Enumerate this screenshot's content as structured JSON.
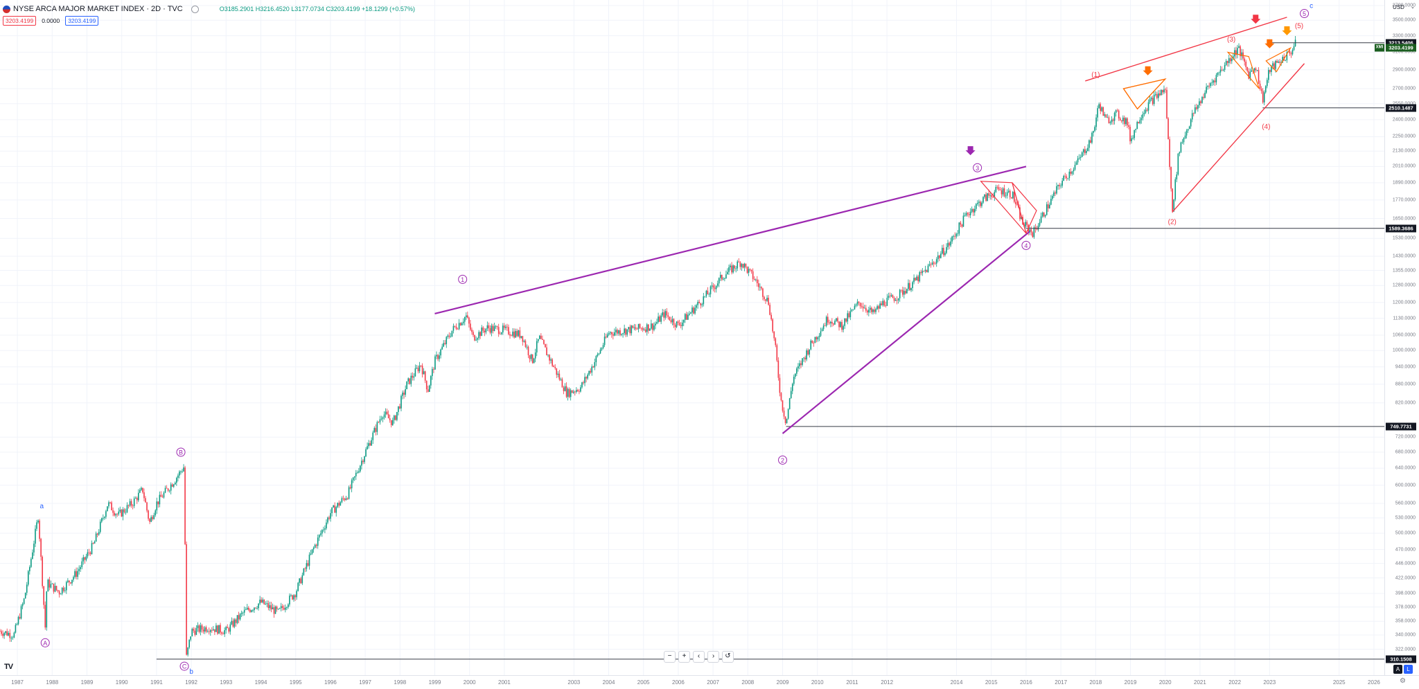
{
  "header": {
    "title": "NYSE ARCA MAJOR MARKET INDEX · 2D · TVC",
    "ohlc": "O3185.2901 H3216.4520 L3177.0734 C3203.4199 +18.1299 (+0.57%)",
    "bid": "3203.4199",
    "spread": "0.0000",
    "ask": "3203.4199"
  },
  "currency": "USD",
  "currency_caret": "⌄",
  "toolbar": {
    "zoom_out": "−",
    "zoom_in": "+",
    "scroll_left": "‹",
    "scroll_right": "›",
    "reset": "↺"
  },
  "logo": "TV",
  "mini_buttons": {
    "auto": "A",
    "log": "L"
  },
  "settings_icon": "⚙",
  "colors": {
    "up": "#089981",
    "down": "#f23645",
    "purple": "#9c27b0",
    "wave_red": "#f23645",
    "wave_blue": "#2962ff",
    "orange": "#ff6d00",
    "amber": "#ff9800"
  },
  "chart_data": {
    "type": "candlestick",
    "symbol": "NYSE ARCA MAJOR MARKET INDEX",
    "interval": "2D",
    "scale": "log",
    "x_range": [
      1986.5,
      2026.3
    ],
    "y_range": [
      295,
      3720
    ],
    "last_price": 3203.4199,
    "x_ticks": [
      "1987",
      "1988",
      "1989",
      "1990",
      "1991",
      "1992",
      "1993",
      "1994",
      "1995",
      "1996",
      "1997",
      "1998",
      "1999",
      "2000",
      "2001",
      "2003",
      "2004",
      "2005",
      "2006",
      "2007",
      "2008",
      "2009",
      "2010",
      "2011",
      "2012",
      "2014",
      "2015",
      "2016",
      "2017",
      "2018",
      "2019",
      "2020",
      "2021",
      "2022",
      "2023",
      "2025",
      "2026"
    ],
    "y_ticks": [
      "3700.0000",
      "3500.0000",
      "3300.0000",
      "3100.0000",
      "2900.0000",
      "2700.0000",
      "2550.0000",
      "2400.0000",
      "2250.0000",
      "2130.0000",
      "2010.0000",
      "1890.0000",
      "1770.0000",
      "1650.0000",
      "1530.0000",
      "1430.0000",
      "1355.0000",
      "1280.0000",
      "1200.0000",
      "1130.0000",
      "1060.0000",
      "1000.0000",
      "940.0000",
      "880.0000",
      "820.0000",
      "720.0000",
      "680.0000",
      "640.0000",
      "600.0000",
      "560.0000",
      "530.0000",
      "500.0000",
      "470.0000",
      "446.0000",
      "422.0000",
      "398.0000",
      "378.0000",
      "358.0000",
      "340.0000",
      "322.0000"
    ],
    "y_tick_values": [
      3700,
      3500,
      3300,
      3100,
      2900,
      2700,
      2550,
      2400,
      2250,
      2130,
      2010,
      1890,
      1770,
      1650,
      1530,
      1430,
      1355,
      1280,
      1200,
      1130,
      1060,
      1000,
      940,
      880,
      820,
      720,
      680,
      640,
      600,
      560,
      530,
      500,
      470,
      446,
      422,
      398,
      378,
      358,
      340,
      322
    ],
    "price_path": [
      [
        1986.5,
        345
      ],
      [
        1986.9,
        340
      ],
      [
        1987.2,
        390
      ],
      [
        1987.6,
        535
      ],
      [
        1987.8,
        350
      ],
      [
        1987.85,
        415
      ],
      [
        1988.2,
        400
      ],
      [
        1988.7,
        430
      ],
      [
        1989.2,
        480
      ],
      [
        1989.6,
        560
      ],
      [
        1989.9,
        535
      ],
      [
        1990.3,
        560
      ],
      [
        1990.6,
        590
      ],
      [
        1990.8,
        520
      ],
      [
        1991.0,
        560
      ],
      [
        1991.5,
        610
      ],
      [
        1991.8,
        645
      ],
      [
        1991.85,
        310
      ],
      [
        1992.0,
        345
      ],
      [
        1992.5,
        350
      ],
      [
        1993.0,
        345
      ],
      [
        1993.5,
        370
      ],
      [
        1994.0,
        385
      ],
      [
        1994.5,
        370
      ],
      [
        1995.0,
        400
      ],
      [
        1995.5,
        470
      ],
      [
        1996.0,
        540
      ],
      [
        1996.5,
        580
      ],
      [
        1997.0,
        680
      ],
      [
        1997.5,
        790
      ],
      [
        1997.8,
        760
      ],
      [
        1998.2,
        880
      ],
      [
        1998.6,
        950
      ],
      [
        1998.8,
        860
      ],
      [
        1999.0,
        960
      ],
      [
        1999.5,
        1080
      ],
      [
        1999.9,
        1140
      ],
      [
        2000.1,
        1050
      ],
      [
        2000.5,
        1090
      ],
      [
        2001.0,
        1080
      ],
      [
        2001.5,
        1060
      ],
      [
        2001.8,
        960
      ],
      [
        2002.0,
        1050
      ],
      [
        2002.5,
        920
      ],
      [
        2002.8,
        850
      ],
      [
        2003.2,
        870
      ],
      [
        2003.6,
        960
      ],
      [
        2004.0,
        1070
      ],
      [
        2004.5,
        1080
      ],
      [
        2005.0,
        1090
      ],
      [
        2005.3,
        1100
      ],
      [
        2005.6,
        1150
      ],
      [
        2006.0,
        1100
      ],
      [
        2006.5,
        1180
      ],
      [
        2006.9,
        1250
      ],
      [
        2007.3,
        1330
      ],
      [
        2007.8,
        1400
      ],
      [
        2008.2,
        1310
      ],
      [
        2008.6,
        1200
      ],
      [
        2008.8,
        1000
      ],
      [
        2008.95,
        830
      ],
      [
        2009.1,
        760
      ],
      [
        2009.3,
        900
      ],
      [
        2009.8,
        1020
      ],
      [
        2010.3,
        1130
      ],
      [
        2010.7,
        1100
      ],
      [
        2011.2,
        1200
      ],
      [
        2011.6,
        1150
      ],
      [
        2011.9,
        1200
      ],
      [
        2012.3,
        1230
      ],
      [
        2012.8,
        1300
      ],
      [
        2013.3,
        1390
      ],
      [
        2013.8,
        1500
      ],
      [
        2014.3,
        1680
      ],
      [
        2014.8,
        1780
      ],
      [
        2015.2,
        1840
      ],
      [
        2015.6,
        1810
      ],
      [
        2015.9,
        1620
      ],
      [
        2016.2,
        1560
      ],
      [
        2016.6,
        1720
      ],
      [
        2017.0,
        1890
      ],
      [
        2017.5,
        2050
      ],
      [
        2017.9,
        2250
      ],
      [
        2018.1,
        2550
      ],
      [
        2018.3,
        2390
      ],
      [
        2018.6,
        2450
      ],
      [
        2018.9,
        2380
      ],
      [
        2019.0,
        2220
      ],
      [
        2019.3,
        2450
      ],
      [
        2019.6,
        2580
      ],
      [
        2020.0,
        2700
      ],
      [
        2020.2,
        1700
      ],
      [
        2020.4,
        2150
      ],
      [
        2020.8,
        2450
      ],
      [
        2021.2,
        2700
      ],
      [
        2021.6,
        2900
      ],
      [
        2021.9,
        3050
      ],
      [
        2022.1,
        3150
      ],
      [
        2022.4,
        2850
      ],
      [
        2022.6,
        2950
      ],
      [
        2022.8,
        2590
      ],
      [
        2023.0,
        2900
      ],
      [
        2023.3,
        3000
      ],
      [
        2023.6,
        3100
      ],
      [
        2023.75,
        3203
      ]
    ],
    "horizontal_levels": [
      {
        "label": "3213.5406",
        "value": 3213.5406,
        "from": 2023.0
      },
      {
        "label": "2510.1487",
        "value": 2510.1487,
        "from": 2022.8
      },
      {
        "label": "1589.3686",
        "value": 1589.3686,
        "from": 2016.0
      },
      {
        "label": "749.7731",
        "value": 749.7731,
        "from": 2009.1
      },
      {
        "label": "310.1508",
        "value": 310.1508,
        "from": 1991.0
      }
    ],
    "last_price_label": "3203.4199",
    "symbol_tag": "XMI",
    "trend_lines": [
      {
        "color": "#9c27b0",
        "width": 2.2,
        "points": [
          [
            1999.0,
            1150
          ],
          [
            2016.0,
            2010
          ]
        ]
      },
      {
        "color": "#9c27b0",
        "width": 2.2,
        "points": [
          [
            2009.0,
            730
          ],
          [
            2016.1,
            1570
          ]
        ]
      },
      {
        "color": "#f23645",
        "width": 1.4,
        "points": [
          [
            2017.7,
            2780
          ],
          [
            2023.5,
            3540
          ]
        ]
      },
      {
        "color": "#f23645",
        "width": 1.4,
        "points": [
          [
            2020.2,
            1690
          ],
          [
            2024.0,
            2970
          ]
        ]
      }
    ],
    "triangles": [
      {
        "color": "#f23645",
        "points": [
          [
            2014.7,
            1900
          ],
          [
            2016.0,
            1560
          ],
          [
            2015.6,
            1890
          ]
        ]
      },
      {
        "color": "#f23645",
        "points": [
          [
            2016.0,
            1560
          ],
          [
            2015.6,
            1890
          ],
          [
            2016.3,
            1700
          ]
        ]
      },
      {
        "color": "#ff6d00",
        "points": [
          [
            2018.8,
            2700
          ],
          [
            2019.2,
            2500
          ],
          [
            2020.0,
            2800
          ]
        ]
      },
      {
        "color": "#ff6d00",
        "points": [
          [
            2019.2,
            2500
          ],
          [
            2020.0,
            2800
          ],
          [
            2018.8,
            2700
          ]
        ]
      },
      {
        "color": "#ff6d00",
        "points": [
          [
            2021.8,
            3100
          ],
          [
            2022.7,
            2700
          ],
          [
            2022.4,
            3050
          ]
        ]
      },
      {
        "color": "#ff6d00",
        "points": [
          [
            2022.9,
            3000
          ],
          [
            2023.2,
            2880
          ],
          [
            2023.6,
            3150
          ]
        ]
      }
    ],
    "wave_labels": [
      {
        "text": "a",
        "x": 1987.7,
        "y": 555,
        "color": "#2962ff",
        "circled": false
      },
      {
        "text": "A",
        "x": 1987.8,
        "y": 330,
        "color": "#9c27b0",
        "circled": true
      },
      {
        "text": "B",
        "x": 1991.7,
        "y": 680,
        "color": "#9c27b0",
        "circled": true
      },
      {
        "text": "C",
        "x": 1991.8,
        "y": 302,
        "color": "#9c27b0",
        "circled": true
      },
      {
        "text": "b",
        "x": 1992.0,
        "y": 296,
        "color": "#2962ff",
        "circled": false
      },
      {
        "text": "1",
        "x": 1999.8,
        "y": 1310,
        "color": "#9c27b0",
        "circled": true
      },
      {
        "text": "2",
        "x": 2009.0,
        "y": 660,
        "color": "#9c27b0",
        "circled": true
      },
      {
        "text": "3",
        "x": 2014.6,
        "y": 2000,
        "color": "#9c27b0",
        "circled": true
      },
      {
        "text": "4",
        "x": 2016.0,
        "y": 1490,
        "color": "#9c27b0",
        "circled": true
      },
      {
        "text": "5",
        "x": 2024.0,
        "y": 3590,
        "color": "#9c27b0",
        "circled": true
      },
      {
        "text": "(1)",
        "x": 2018.0,
        "y": 2850,
        "color": "#f23645",
        "circled": false
      },
      {
        "text": "(2)",
        "x": 2020.2,
        "y": 1630,
        "color": "#f23645",
        "circled": false
      },
      {
        "text": "(3)",
        "x": 2021.9,
        "y": 3260,
        "color": "#f23645",
        "circled": false
      },
      {
        "text": "(4)",
        "x": 2022.9,
        "y": 2340,
        "color": "#f23645",
        "circled": false
      },
      {
        "text": "(5)",
        "x": 2023.85,
        "y": 3430,
        "color": "#f23645",
        "circled": false
      },
      {
        "text": "c",
        "x": 2024.2,
        "y": 3700,
        "color": "#2962ff",
        "circled": false
      }
    ],
    "arrows": [
      {
        "x": 2014.4,
        "y": 2120,
        "color": "#9c27b0"
      },
      {
        "x": 2019.5,
        "y": 2870,
        "color": "#ff6d00"
      },
      {
        "x": 2022.6,
        "y": 3490,
        "color": "#f23645"
      },
      {
        "x": 2023.0,
        "y": 3180,
        "color": "#ff6d00"
      },
      {
        "x": 2023.5,
        "y": 3340,
        "color": "#ff9800"
      }
    ]
  }
}
